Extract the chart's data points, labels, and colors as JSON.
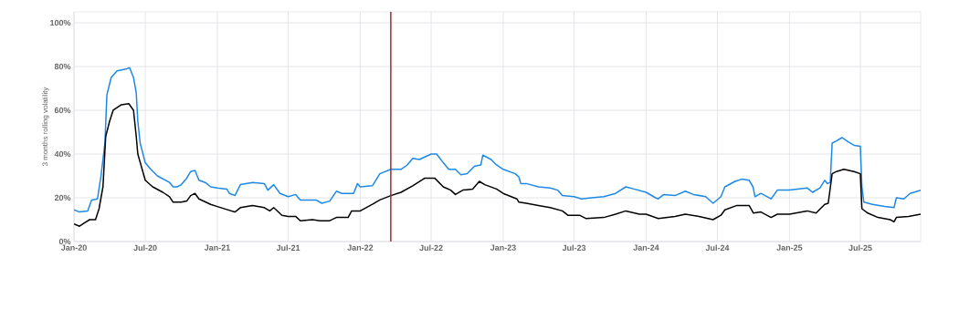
{
  "chart_data": {
    "type": "line",
    "ylabel": "3 months rolling volatility",
    "xlim": [
      "2020-01-01",
      "2025-12-02"
    ],
    "ylim": [
      0,
      105
    ],
    "xticks": [
      {
        "value": "2020-01-01",
        "label": "Jan-20"
      },
      {
        "value": "2020-07-01",
        "label": "Jul-20"
      },
      {
        "value": "2021-01-01",
        "label": "Jan-21"
      },
      {
        "value": "2021-07-01",
        "label": "Jul-21"
      },
      {
        "value": "2022-01-01",
        "label": "Jan-22"
      },
      {
        "value": "2022-07-01",
        "label": "Jul-22"
      },
      {
        "value": "2023-01-01",
        "label": "Jan-23"
      },
      {
        "value": "2023-07-01",
        "label": "Jul-23"
      },
      {
        "value": "2024-01-01",
        "label": "Jan-24"
      },
      {
        "value": "2024-07-01",
        "label": "Jul-24"
      },
      {
        "value": "2025-01-01",
        "label": "Jan-25"
      },
      {
        "value": "2025-07-01",
        "label": "Jul-25"
      }
    ],
    "yticks": [
      {
        "value": 0,
        "label": "0%"
      },
      {
        "value": 20,
        "label": "20%"
      },
      {
        "value": 40,
        "label": "40%"
      },
      {
        "value": 60,
        "label": "60%"
      },
      {
        "value": 80,
        "label": "80%"
      },
      {
        "value": 100,
        "label": "100%"
      }
    ],
    "grid": true,
    "legend": false,
    "marker": "none",
    "line_style": "solid",
    "ref_lines": [
      {
        "axis": "x",
        "value": "2022-03-20",
        "color": "#a52a2a"
      }
    ],
    "series": [
      {
        "color": "#1e88e5",
        "x": [
          "2020-01-01",
          "2020-01-15",
          "2020-02-05",
          "2020-02-15",
          "2020-03-01",
          "2020-03-10",
          "2020-03-20",
          "2020-03-25",
          "2020-04-05",
          "2020-04-20",
          "2020-05-15",
          "2020-05-22",
          "2020-06-01",
          "2020-06-08",
          "2020-06-12",
          "2020-06-18",
          "2020-07-01",
          "2020-07-15",
          "2020-08-01",
          "2020-09-01",
          "2020-09-10",
          "2020-09-20",
          "2020-10-01",
          "2020-10-15",
          "2020-10-25",
          "2020-11-05",
          "2020-11-15",
          "2020-12-01",
          "2020-12-15",
          "2021-01-01",
          "2021-01-25",
          "2021-02-01",
          "2021-02-15",
          "2021-03-01",
          "2021-04-01",
          "2021-05-01",
          "2021-05-10",
          "2021-05-25",
          "2021-06-10",
          "2021-07-01",
          "2021-07-20",
          "2021-08-01",
          "2021-09-10",
          "2021-09-25",
          "2021-10-15",
          "2021-11-01",
          "2021-11-15",
          "2021-12-15",
          "2021-12-25",
          "2022-01-01",
          "2022-02-01",
          "2022-02-20",
          "2022-03-20",
          "2022-04-15",
          "2022-05-01",
          "2022-05-15",
          "2022-06-01",
          "2022-07-01",
          "2022-07-15",
          "2022-08-01",
          "2022-08-15",
          "2022-09-01",
          "2022-09-15",
          "2022-10-01",
          "2022-10-20",
          "2022-11-05",
          "2022-11-10",
          "2022-12-01",
          "2022-12-15",
          "2023-01-01",
          "2023-02-01",
          "2023-02-10",
          "2023-02-15",
          "2023-03-01",
          "2023-04-01",
          "2023-05-01",
          "2023-05-20",
          "2023-06-01",
          "2023-07-01",
          "2023-07-20",
          "2023-08-15",
          "2023-09-15",
          "2023-10-15",
          "2023-11-10",
          "2023-12-01",
          "2024-01-01",
          "2024-01-25",
          "2024-02-01",
          "2024-02-15",
          "2024-03-15",
          "2024-04-10",
          "2024-05-01",
          "2024-06-01",
          "2024-06-20",
          "2024-07-10",
          "2024-07-20",
          "2024-08-15",
          "2024-09-01",
          "2024-09-20",
          "2024-09-30",
          "2024-10-05",
          "2024-10-20",
          "2024-11-15",
          "2024-12-01",
          "2025-01-01",
          "2025-02-15",
          "2025-03-01",
          "2025-03-20",
          "2025-04-01",
          "2025-04-08",
          "2025-04-15",
          "2025-04-20",
          "2025-05-01",
          "2025-05-15",
          "2025-06-01",
          "2025-06-15",
          "2025-07-01",
          "2025-07-05",
          "2025-07-10",
          "2025-08-01",
          "2025-09-01",
          "2025-09-25",
          "2025-10-01",
          "2025-10-20",
          "2025-11-05",
          "2025-12-02"
        ],
        "values": [
          14.5,
          13.5,
          14,
          19,
          19.5,
          30,
          45,
          67,
          75,
          78,
          79,
          79.5,
          75,
          68,
          55,
          45,
          36,
          33,
          30,
          27,
          25,
          25,
          26,
          29,
          32,
          32.5,
          28,
          27,
          25,
          24.5,
          24,
          22,
          21,
          26,
          27,
          26.5,
          23.5,
          26,
          22,
          20.5,
          21.5,
          19,
          19,
          17.5,
          18.5,
          23,
          22,
          22,
          26.5,
          25,
          25.5,
          31,
          33,
          33,
          35,
          38,
          37.5,
          40,
          40,
          36,
          33,
          33,
          30.5,
          31,
          34.5,
          35,
          39.5,
          37.5,
          35,
          33,
          31,
          29.5,
          26.5,
          26.5,
          25,
          24.5,
          23.5,
          21,
          20.5,
          19.5,
          20,
          20.5,
          22,
          25,
          24,
          22.5,
          20,
          19.5,
          21.5,
          21,
          23,
          21.5,
          20.5,
          17.5,
          20.5,
          25,
          27.5,
          28.5,
          28,
          25,
          20.5,
          22,
          19.5,
          23.5,
          23.5,
          24.5,
          22.5,
          24.5,
          28,
          26.5,
          27,
          45,
          46,
          47.5,
          45.5,
          44,
          43.5,
          25,
          18,
          17,
          16,
          15.5,
          20,
          19.5,
          22,
          23.5
        ]
      },
      {
        "color": "#000000",
        "x": [
          "2020-01-01",
          "2020-01-15",
          "2020-02-01",
          "2020-02-10",
          "2020-02-25",
          "2020-03-05",
          "2020-03-15",
          "2020-03-22",
          "2020-04-01",
          "2020-04-10",
          "2020-05-01",
          "2020-05-20",
          "2020-06-01",
          "2020-06-08",
          "2020-06-12",
          "2020-07-01",
          "2020-07-20",
          "2020-08-15",
          "2020-09-01",
          "2020-09-10",
          "2020-10-01",
          "2020-10-15",
          "2020-10-25",
          "2020-11-05",
          "2020-11-15",
          "2020-12-15",
          "2021-01-01",
          "2021-02-15",
          "2021-03-01",
          "2021-04-01",
          "2021-05-01",
          "2021-05-15",
          "2021-05-25",
          "2021-06-15",
          "2021-07-01",
          "2021-07-20",
          "2021-08-01",
          "2021-09-01",
          "2021-09-20",
          "2021-10-15",
          "2021-11-01",
          "2021-12-01",
          "2021-12-10",
          "2022-01-01",
          "2022-02-01",
          "2022-02-20",
          "2022-03-20",
          "2022-04-15",
          "2022-05-15",
          "2022-06-15",
          "2022-07-10",
          "2022-08-01",
          "2022-08-20",
          "2022-09-01",
          "2022-09-20",
          "2022-10-15",
          "2022-11-01",
          "2022-11-15",
          "2022-12-15",
          "2023-01-01",
          "2023-02-05",
          "2023-02-10",
          "2023-03-01",
          "2023-04-01",
          "2023-05-01",
          "2023-06-01",
          "2023-06-15",
          "2023-07-15",
          "2023-08-01",
          "2023-09-15",
          "2023-10-15",
          "2023-11-10",
          "2023-12-15",
          "2024-01-01",
          "2024-02-01",
          "2024-03-15",
          "2024-04-10",
          "2024-05-15",
          "2024-06-20",
          "2024-07-10",
          "2024-07-20",
          "2024-08-20",
          "2024-09-20",
          "2024-10-01",
          "2024-10-20",
          "2024-11-15",
          "2024-12-01",
          "2025-01-01",
          "2025-02-15",
          "2025-03-10",
          "2025-04-01",
          "2025-04-10",
          "2025-04-20",
          "2025-05-01",
          "2025-05-20",
          "2025-06-15",
          "2025-07-01",
          "2025-07-05",
          "2025-07-20",
          "2025-08-15",
          "2025-09-15",
          "2025-09-25",
          "2025-10-01",
          "2025-11-01",
          "2025-12-02"
        ],
        "values": [
          8,
          7,
          9,
          10,
          10,
          15,
          25,
          48,
          55,
          60,
          62.5,
          63,
          60,
          48,
          40,
          28,
          25,
          22.5,
          20.5,
          18,
          18,
          18.5,
          21,
          22,
          19.5,
          17,
          16,
          13.5,
          15.5,
          16.5,
          15.5,
          14,
          15.5,
          12,
          11.5,
          11.5,
          9.5,
          10,
          9.5,
          9.5,
          11,
          11,
          14,
          14,
          17,
          19,
          21,
          22.5,
          25.5,
          29,
          29,
          25,
          23.5,
          21.5,
          23.5,
          24,
          27.5,
          26,
          24,
          22,
          19.5,
          18,
          17.5,
          16.5,
          15.5,
          14,
          12,
          12,
          10.5,
          11,
          12.5,
          14,
          12.5,
          12.5,
          10.5,
          11.5,
          12.5,
          11.5,
          10,
          12,
          14.5,
          16.5,
          16.5,
          13,
          13.5,
          11,
          12.5,
          12.5,
          14,
          13,
          17,
          17.5,
          31,
          32,
          33,
          32,
          31,
          15,
          13,
          11,
          10,
          9,
          11,
          11.5,
          12.5
        ]
      }
    ]
  }
}
